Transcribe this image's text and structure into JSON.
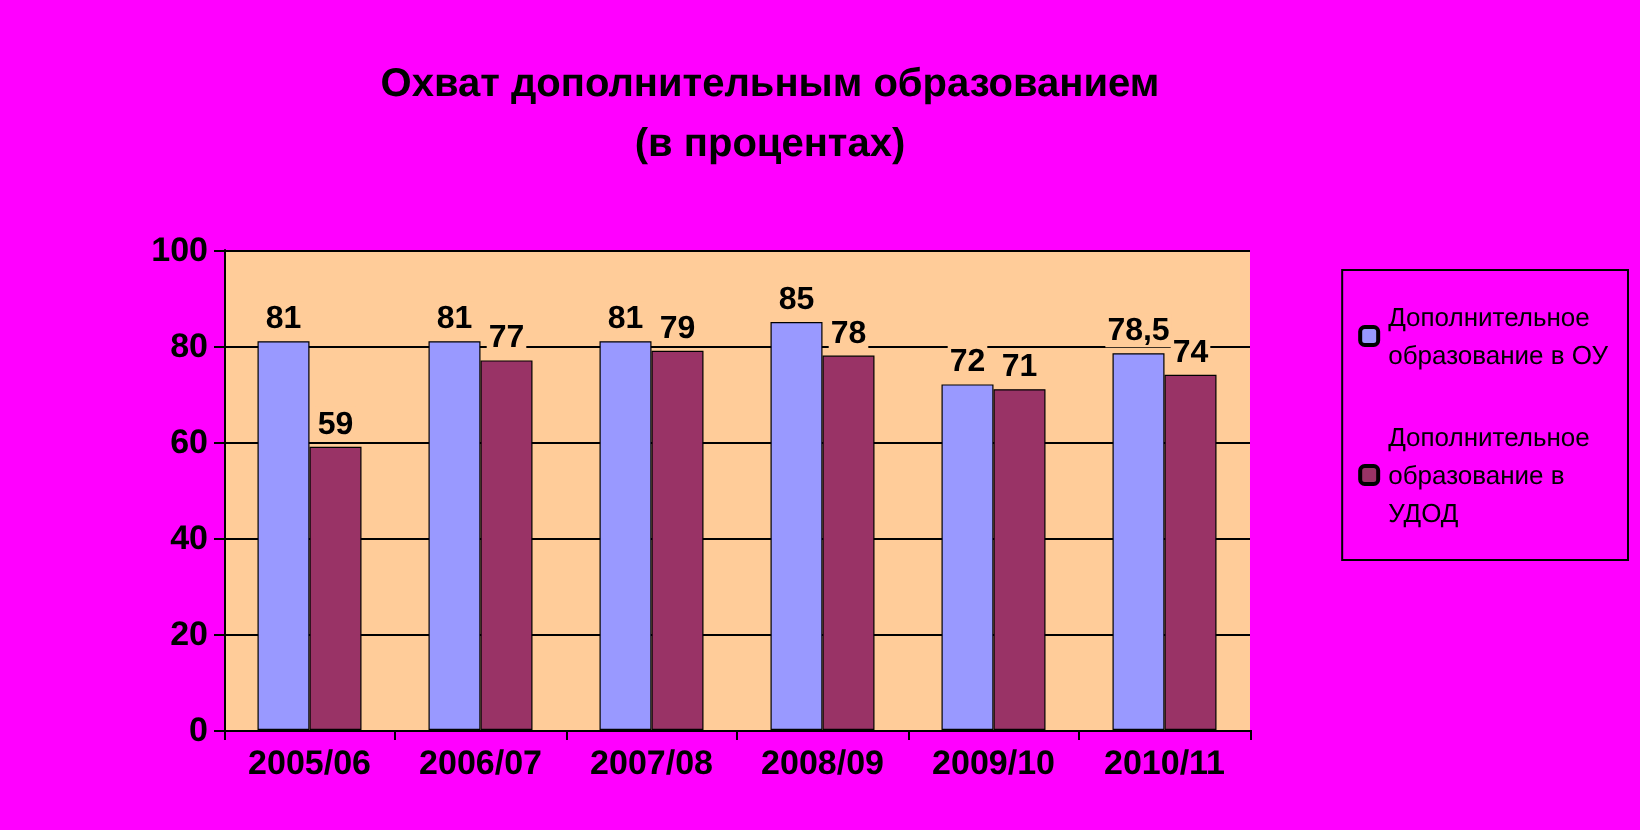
{
  "chart_data": {
    "type": "bar",
    "title": "Охват дополнительным образованием\n(в процентах)",
    "categories": [
      "2005/06",
      "2006/07",
      "2007/08",
      "2008/09",
      "2009/10",
      "2010/11"
    ],
    "series": [
      {
        "name": "Дополнительное образование в ОУ",
        "color": "#9999ff",
        "values": [
          81,
          81,
          81,
          85,
          72,
          78.5
        ],
        "value_labels": [
          "81",
          "81",
          "81",
          "85",
          "72",
          "78,5"
        ]
      },
      {
        "name": "Дополнительное образование в УДОД",
        "color": "#993366",
        "values": [
          59,
          77,
          79,
          78,
          71,
          74
        ],
        "value_labels": [
          "59",
          "77",
          "79",
          "78",
          "71",
          "74"
        ]
      }
    ],
    "ylim": [
      0,
      100
    ],
    "yticks": [
      0,
      20,
      40,
      60,
      80,
      100
    ],
    "grid": "y",
    "legend": "right"
  }
}
